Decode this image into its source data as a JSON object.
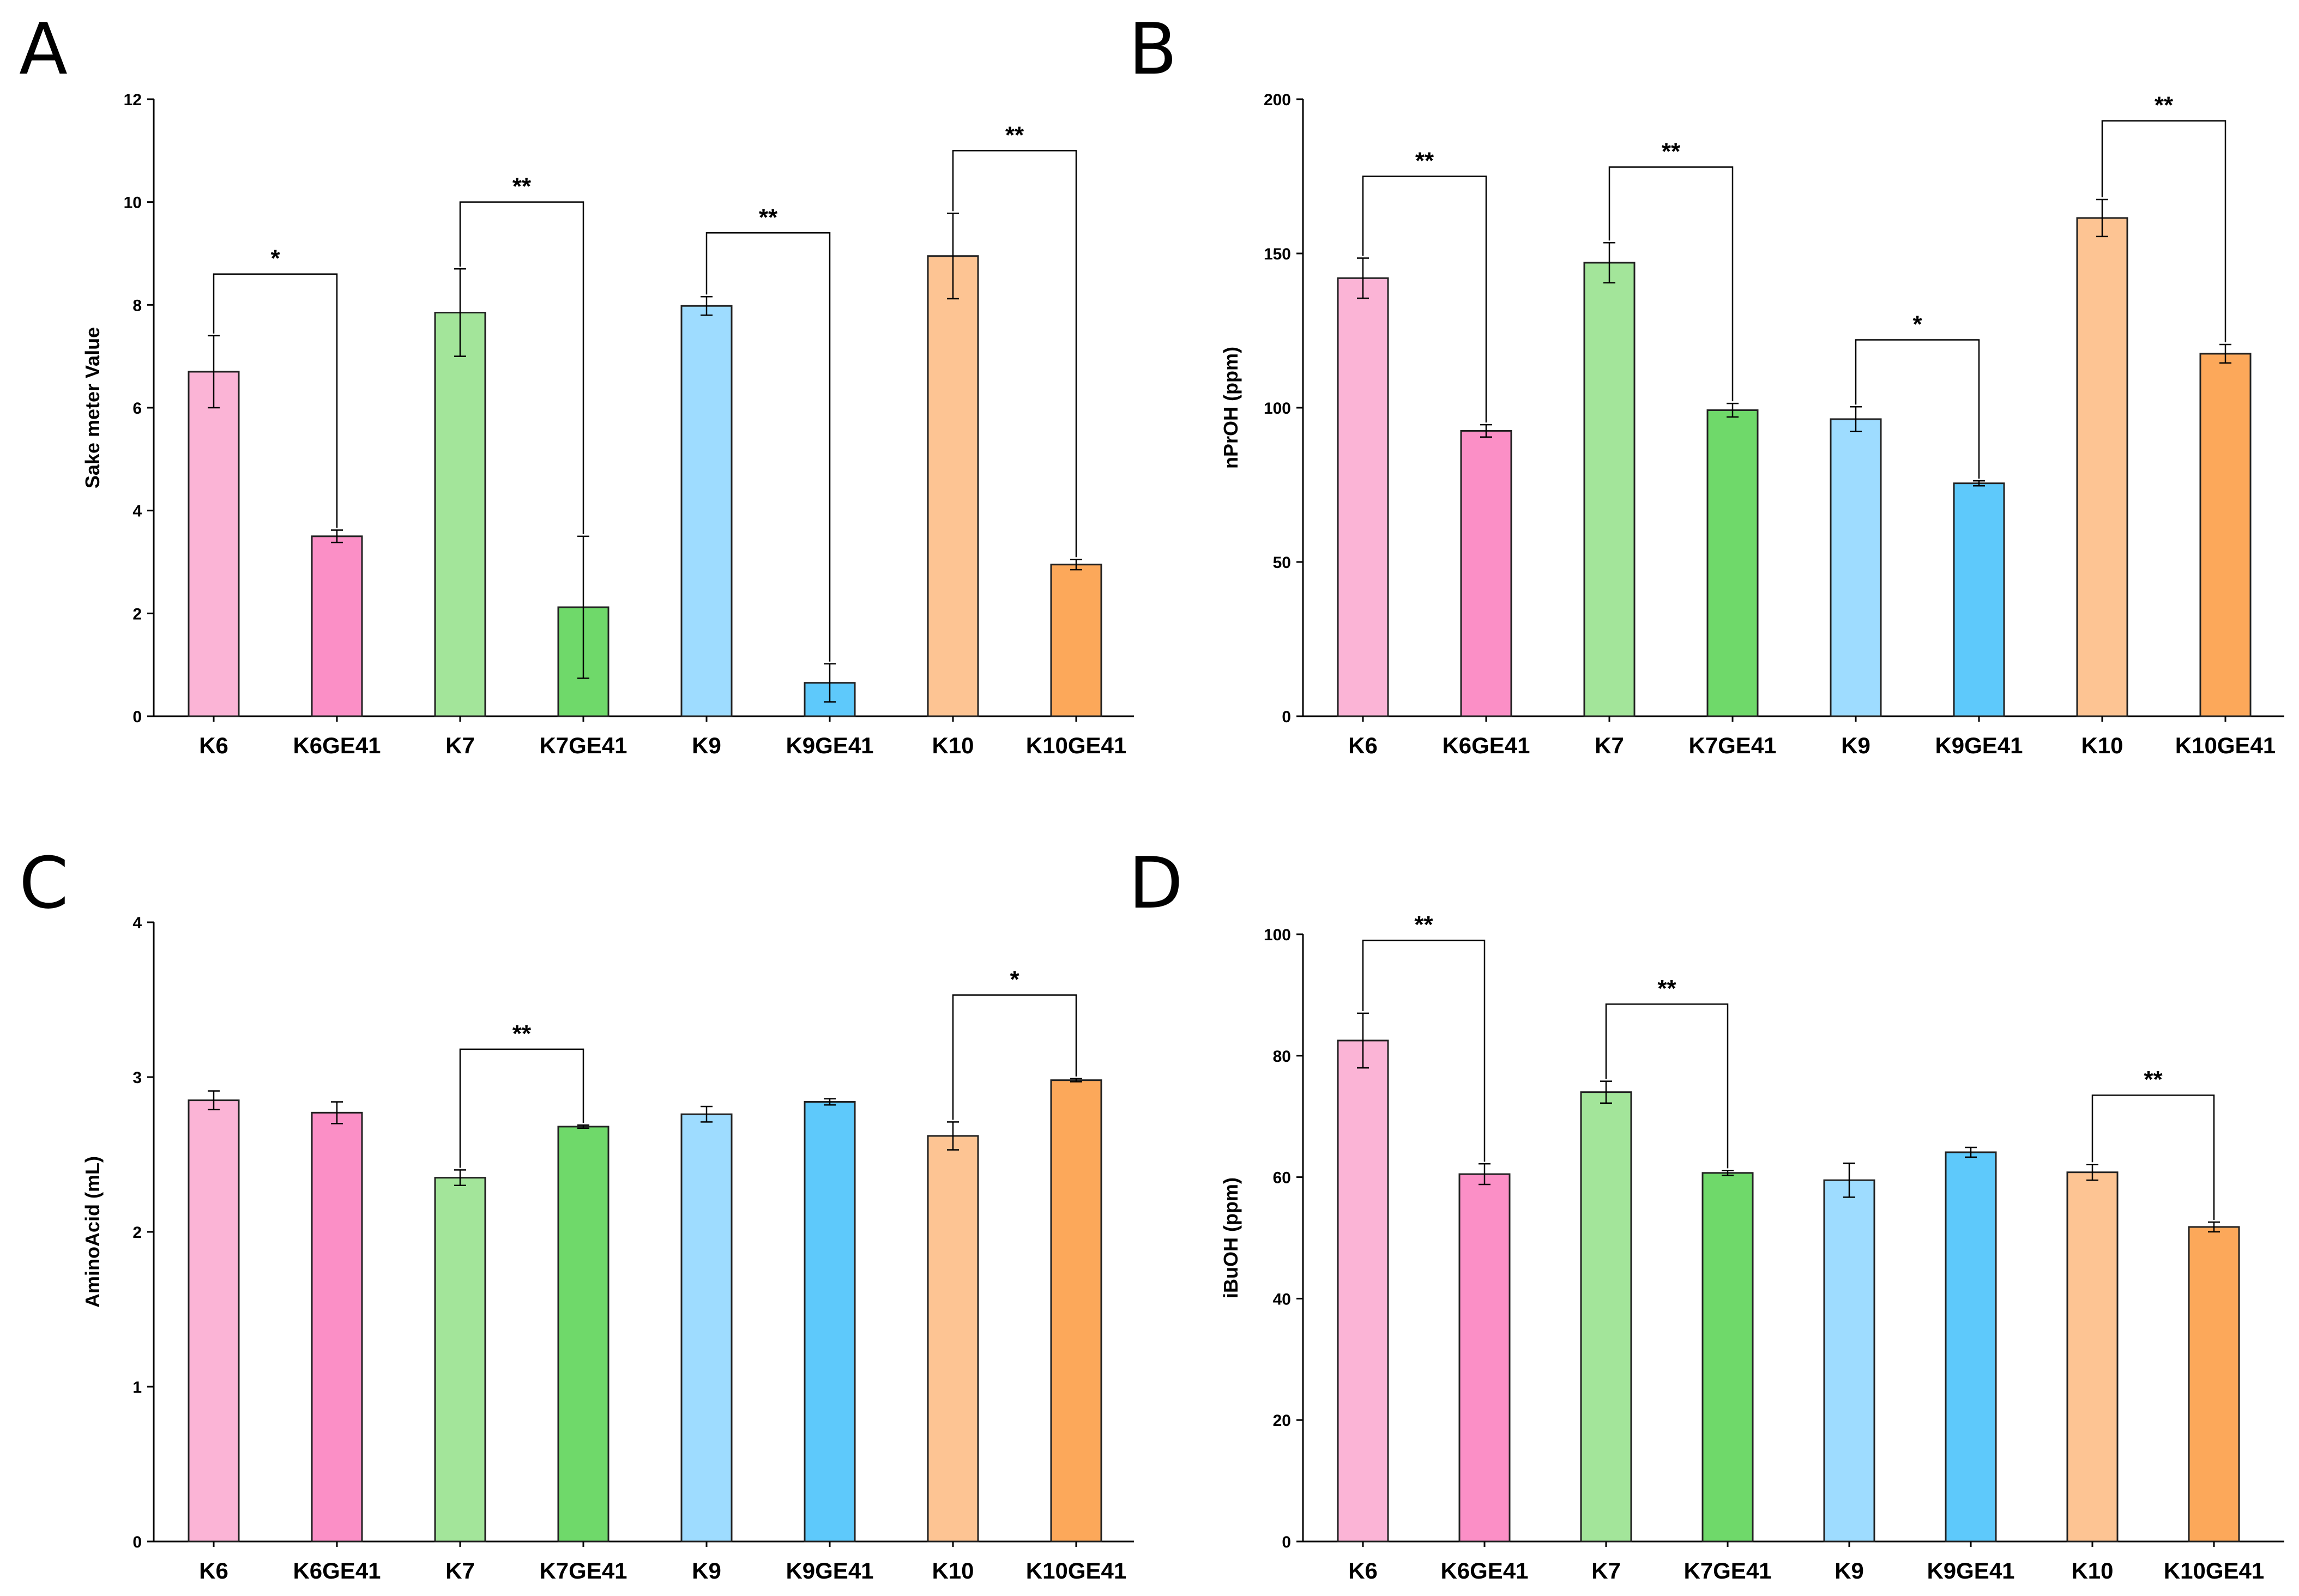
{
  "colors": {
    "K6": "#fbb4d6",
    "K6GE41": "#fb8fc6",
    "K7": "#a3e59a",
    "K7GE41": "#6fd96a",
    "K9": "#9edcff",
    "K9GE41": "#5ec9fb",
    "K10": "#fdc493",
    "K10GE41": "#fca85a"
  },
  "chart_data": [
    {
      "panel": "A",
      "type": "bar",
      "ylabel": "Sake meter Value",
      "ylim": [
        0,
        12
      ],
      "yticks": [
        0,
        2,
        4,
        6,
        8,
        10,
        12
      ],
      "categories": [
        "K6",
        "K6GE41",
        "K7",
        "K7GE41",
        "K9",
        "K9GE41",
        "K10",
        "K10GE41"
      ],
      "values": [
        6.7,
        3.5,
        7.85,
        2.12,
        7.98,
        0.65,
        8.95,
        2.95
      ],
      "errors": [
        0.7,
        0.12,
        0.85,
        1.38,
        0.18,
        0.37,
        0.83,
        0.1
      ],
      "significance": [
        {
          "pair": [
            0,
            1
          ],
          "label": "*",
          "level": 8.6
        },
        {
          "pair": [
            2,
            3
          ],
          "label": "**",
          "level": 10.0
        },
        {
          "pair": [
            4,
            5
          ],
          "label": "**",
          "level": 9.4
        },
        {
          "pair": [
            6,
            7
          ],
          "label": "**",
          "level": 11.0
        }
      ]
    },
    {
      "panel": "B",
      "type": "bar",
      "ylabel": "nPrOH (ppm)",
      "ylim": [
        0,
        200
      ],
      "yticks": [
        0,
        50,
        100,
        150,
        200
      ],
      "categories": [
        "K6",
        "K6GE41",
        "K7",
        "K7GE41",
        "K9",
        "K9GE41",
        "K10",
        "K10GE41"
      ],
      "values": [
        142,
        92.5,
        147,
        99.2,
        96.3,
        75.5,
        161.5,
        117.5
      ],
      "errors": [
        6.5,
        2.0,
        6.5,
        2.2,
        4.0,
        0.8,
        6.0,
        3.0
      ],
      "significance": [
        {
          "pair": [
            0,
            1
          ],
          "label": "**",
          "level": 175
        },
        {
          "pair": [
            2,
            3
          ],
          "label": "**",
          "level": 178
        },
        {
          "pair": [
            4,
            5
          ],
          "label": "*",
          "level": 122
        },
        {
          "pair": [
            6,
            7
          ],
          "label": "**",
          "level": 193
        }
      ]
    },
    {
      "panel": "C",
      "type": "bar",
      "ylabel": "AminoAcid (mL)",
      "ylim": [
        0,
        4
      ],
      "yticks": [
        0,
        1,
        2,
        3,
        4
      ],
      "categories": [
        "K6",
        "K6GE41",
        "K7",
        "K7GE41",
        "K9",
        "K9GE41",
        "K10",
        "K10GE41"
      ],
      "values": [
        2.85,
        2.77,
        2.35,
        2.68,
        2.76,
        2.84,
        2.62,
        2.98
      ],
      "errors": [
        0.06,
        0.07,
        0.05,
        0.01,
        0.05,
        0.02,
        0.09,
        0.01
      ],
      "significance": [
        {
          "pair": [
            2,
            3
          ],
          "label": "**",
          "level": 3.18
        },
        {
          "pair": [
            6,
            7
          ],
          "label": "*",
          "level": 3.53
        }
      ]
    },
    {
      "panel": "D",
      "type": "bar",
      "ylabel": "iBuOH (ppm)",
      "ylim": [
        0,
        100
      ],
      "yticks": [
        0,
        20,
        40,
        60,
        80,
        100
      ],
      "categories": [
        "K6",
        "K6GE41",
        "K7",
        "K7GE41",
        "K9",
        "K9GE41",
        "K10",
        "K10GE41"
      ],
      "values": [
        82.5,
        60.5,
        74,
        60.7,
        59.5,
        64.1,
        60.8,
        51.8
      ],
      "errors": [
        4.5,
        1.7,
        1.8,
        0.4,
        2.8,
        0.8,
        1.3,
        0.8
      ],
      "significance": [
        {
          "pair": [
            0,
            1
          ],
          "label": "**",
          "level": 99
        },
        {
          "pair": [
            2,
            3
          ],
          "label": "**",
          "level": 88.5
        },
        {
          "pair": [
            6,
            7
          ],
          "label": "**",
          "level": 73.5
        }
      ]
    }
  ]
}
